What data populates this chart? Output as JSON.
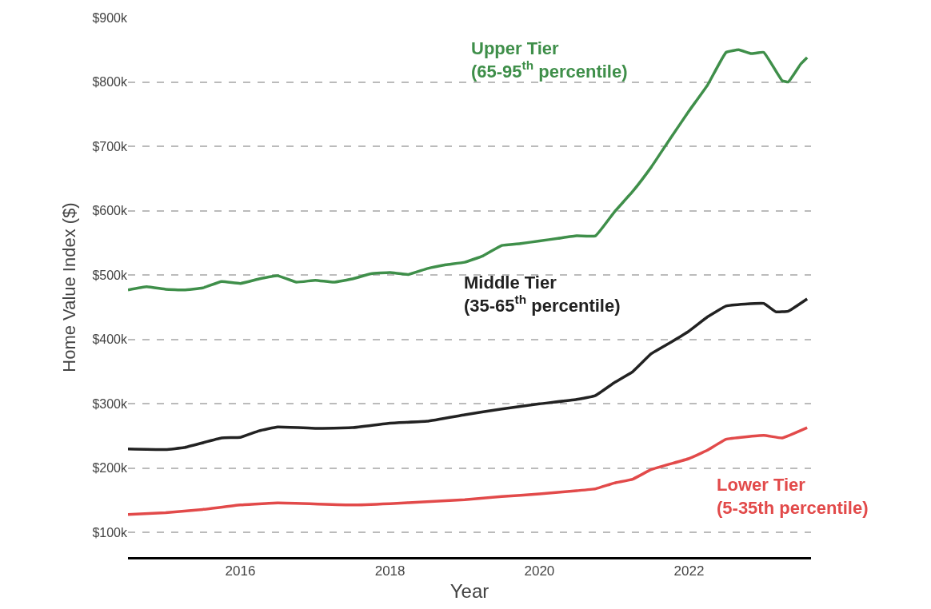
{
  "chart_data": {
    "type": "line",
    "xlabel": "Year",
    "ylabel": "Home Value Index ($)",
    "xlim": [
      "2014-07-01",
      "2023-08-20"
    ],
    "xticks": [
      {
        "value": "2016",
        "label": "2016"
      },
      {
        "value": "2018",
        "label": "2018"
      },
      {
        "value": "2020",
        "label": "2020"
      },
      {
        "value": "2022",
        "label": "2022"
      }
    ],
    "ylim": [
      62000,
      900000
    ],
    "yticks": [
      {
        "value": 100000,
        "label": "$100k"
      },
      {
        "value": 200000,
        "label": "$200k"
      },
      {
        "value": 300000,
        "label": "$300k"
      },
      {
        "value": 400000,
        "label": "$400k"
      },
      {
        "value": 500000,
        "label": "$500k"
      },
      {
        "value": 600000,
        "label": "$600k"
      },
      {
        "value": 700000,
        "label": "$700k"
      },
      {
        "value": 800000,
        "label": "$800k"
      },
      {
        "value": 900000,
        "label": "$900k"
      }
    ],
    "grid": "y",
    "legend": false,
    "marker": "none",
    "line_style": "solid",
    "series": [
      {
        "name": "Upper Tier\n(65-95$^{th}$ percentile)",
        "color": "#3f8f4a",
        "x": [
          "2014-07",
          "2014-10",
          "2015-01",
          "2015-04",
          "2015-07",
          "2015-10",
          "2016-01",
          "2016-04",
          "2016-07",
          "2016-10",
          "2017-01",
          "2017-04",
          "2017-07",
          "2017-10",
          "2018-01",
          "2018-04",
          "2018-07",
          "2018-10",
          "2019-01",
          "2019-04",
          "2019-07",
          "2019-10",
          "2020-01",
          "2020-04",
          "2020-07",
          "2020-10",
          "2021-01",
          "2021-04",
          "2021-07",
          "2021-10",
          "2022-01",
          "2022-04",
          "2022-07",
          "2022-09",
          "2022-11",
          "2023-01",
          "2023-04",
          "2023-05",
          "2023-07",
          "2023-08"
        ],
        "values": [
          477000,
          482000,
          478000,
          477000,
          480000,
          490000,
          487000,
          494000,
          499000,
          489000,
          492000,
          489000,
          494000,
          502000,
          504000,
          501000,
          510000,
          516000,
          520000,
          530000,
          546000,
          549000,
          553000,
          557000,
          561000,
          561000,
          598000,
          630000,
          668000,
          712000,
          755000,
          795000,
          846000,
          850000,
          844000,
          846000,
          802000,
          800000,
          828000,
          838000
        ]
      },
      {
        "name": "Middle Tier\n(35-65$^{th}$ percentile)",
        "color": "#222222",
        "x": [
          "2014-07",
          "2015-01",
          "2015-04",
          "2015-10",
          "2016-01",
          "2016-04",
          "2016-07",
          "2017-01",
          "2017-07",
          "2018-01",
          "2018-07",
          "2019-01",
          "2019-07",
          "2020-01",
          "2020-07",
          "2020-10",
          "2021-01",
          "2021-04",
          "2021-07",
          "2021-10",
          "2022-01",
          "2022-04",
          "2022-07",
          "2022-10",
          "2023-01",
          "2023-03",
          "2023-05",
          "2023-08"
        ],
        "values": [
          230000,
          229000,
          232000,
          247000,
          248000,
          258000,
          264000,
          262000,
          263000,
          270000,
          273000,
          283000,
          292000,
          300000,
          307000,
          313000,
          333000,
          350000,
          378000,
          395000,
          413000,
          435000,
          452000,
          455000,
          456000,
          443000,
          444000,
          463000
        ]
      },
      {
        "name": "Lower Tier\n(5-35th percentile)",
        "color": "#e24a4a",
        "x": [
          "2014-07",
          "2015-01",
          "2015-07",
          "2016-01",
          "2016-07",
          "2017-07",
          "2018-01",
          "2018-07",
          "2019-01",
          "2019-07",
          "2020-01",
          "2020-07",
          "2020-10",
          "2021-01",
          "2021-04",
          "2021-07",
          "2022-01",
          "2022-04",
          "2022-07",
          "2023-01",
          "2023-04",
          "2023-08"
        ],
        "values": [
          128000,
          131000,
          136000,
          143000,
          146000,
          143000,
          145000,
          148000,
          151000,
          156000,
          160000,
          165000,
          168000,
          177000,
          183000,
          198000,
          215000,
          228000,
          245000,
          251000,
          247000,
          263000
        ]
      }
    ]
  }
}
